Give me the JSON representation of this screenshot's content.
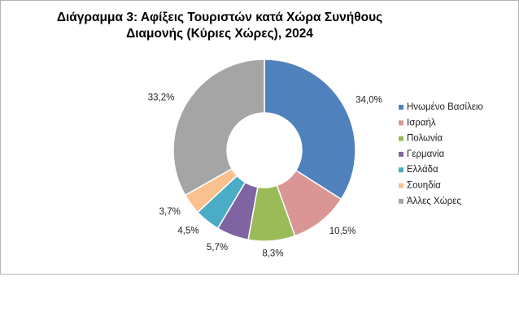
{
  "chart_data": {
    "type": "donut",
    "title": "Διάγραμμα 3: Αφίξεις Τουριστών κατά Χώρα Συνήθους Διαμονής (Κύριες Χώρες), 2024",
    "categories": [
      "Ηνωμένο Βασίλειο",
      "Ισραήλ",
      "Πολωνία",
      "Γερμανία",
      "Ελλάδα",
      "Σουηδία",
      "Άλλες Χώρες"
    ],
    "values": [
      34.0,
      10.5,
      8.3,
      5.7,
      4.5,
      3.7,
      33.2
    ],
    "value_labels": [
      "34,0%",
      "10,5%",
      "8,3%",
      "5,7%",
      "4,5%",
      "3,7%",
      "33,2%"
    ],
    "colors": [
      "#4f81bd",
      "#d99694",
      "#9bbb59",
      "#8064a2",
      "#4bacc6",
      "#fac090",
      "#a5a5a5"
    ],
    "legend": "right"
  }
}
